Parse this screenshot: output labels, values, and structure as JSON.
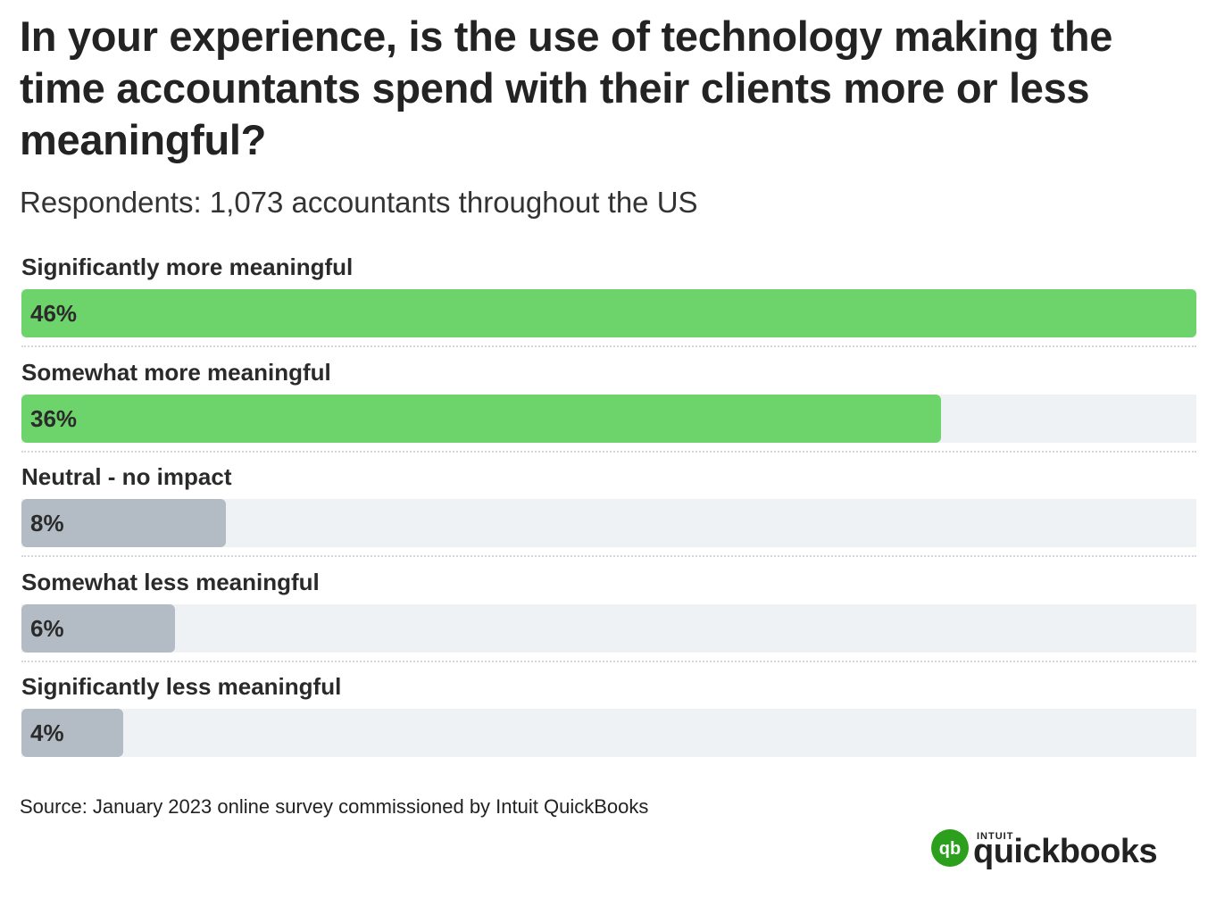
{
  "chart_data": {
    "type": "bar",
    "orientation": "horizontal",
    "title": "In your experience, is the use of technology making the time accountants spend with their clients more or less meaningful?",
    "subtitle": "Respondents: 1,073 accountants throughout the US",
    "categories": [
      "Significantly more meaningful",
      "Somewhat more meaningful",
      "Neutral - no impact",
      "Somewhat less meaningful",
      "Significantly less meaningful"
    ],
    "values": [
      46,
      36,
      8,
      6,
      4
    ],
    "value_labels": [
      "46%",
      "36%",
      "8%",
      "6%",
      "4%"
    ],
    "bar_colors": [
      "#6dd46b",
      "#6dd46b",
      "#b3bcc4",
      "#b3bcc4",
      "#b3bcc4"
    ],
    "track_color": "#eff2f5",
    "xlim": [
      0,
      46
    ],
    "xlabel": "",
    "ylabel": "",
    "grid": false,
    "legend": "none"
  },
  "source": "Source: January 2023 online survey commissioned by Intuit QuickBooks",
  "logo": {
    "brand_small": "INTUIT",
    "brand_large": "quickbooks",
    "mark_glyph": "qb",
    "mark_color": "#2ca01c"
  }
}
